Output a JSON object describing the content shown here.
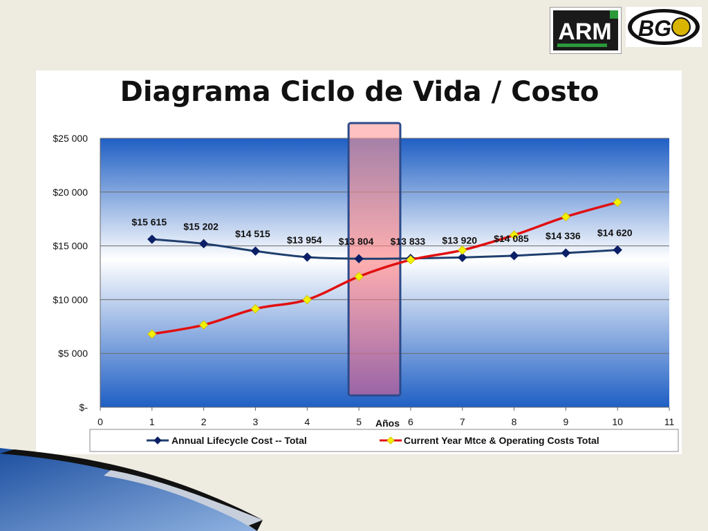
{
  "logos": {
    "arm_text": "ARM",
    "bg_text": "BG"
  },
  "chart_data": {
    "type": "line",
    "title": "Diagrama Ciclo de Vida / Costo",
    "xlabel": "Años",
    "ylabel": "",
    "xlim": [
      0,
      11
    ],
    "ylim": [
      0,
      25000
    ],
    "x_ticks": [
      "0",
      "1",
      "2",
      "3",
      "4",
      "5",
      "6",
      "7",
      "8",
      "9",
      "10",
      "11"
    ],
    "y_ticks": [
      {
        "value": 0,
        "label": "$-"
      },
      {
        "value": 5000,
        "label": "$5 000"
      },
      {
        "value": 10000,
        "label": "$10 000"
      },
      {
        "value": 15000,
        "label": "$15 000"
      },
      {
        "value": 20000,
        "label": "$20 000"
      },
      {
        "value": 25000,
        "label": "$25 000"
      }
    ],
    "grid": true,
    "legend_position": "bottom",
    "highlight_band": {
      "x_from": 4.8,
      "x_to": 5.8
    },
    "series": [
      {
        "name": "Annual Lifecycle Cost -- Total",
        "color": "#1f3f6e",
        "marker_color": "#0a1f66",
        "marker": "diamond",
        "x": [
          1,
          2,
          3,
          4,
          5,
          6,
          7,
          8,
          9,
          10
        ],
        "values": [
          15615,
          15202,
          14515,
          13954,
          13804,
          13833,
          13920,
          14085,
          14336,
          14620
        ],
        "labels": [
          "$15 615",
          "$15 202",
          "$14 515",
          "$13 954",
          "$13 804",
          "$13 833",
          "$13 920",
          "$14 085",
          "$14 336",
          "$14 620"
        ]
      },
      {
        "name": "Current Year Mtce & Operating Costs Total",
        "color": "#e01010",
        "marker_color": "#f2f200",
        "marker": "diamond",
        "x": [
          1,
          2,
          3,
          4,
          5,
          6,
          7,
          8,
          9,
          10
        ],
        "values": [
          6800,
          7650,
          9150,
          10000,
          12150,
          13700,
          14600,
          16000,
          17700,
          19050
        ]
      }
    ]
  }
}
